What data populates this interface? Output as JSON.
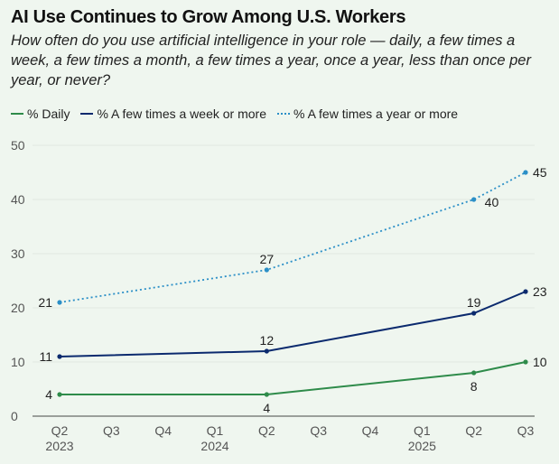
{
  "title": "AI Use Continues to Grow Among U.S. Workers",
  "subtitle": "How often do you use artificial intelligence in your role — daily, a few times a week, a few times a month, a few times a year, once a year, less than once per year, or never?",
  "chart_data": {
    "type": "line",
    "title": "AI Use Continues to Grow Among U.S. Workers",
    "xlabel": "",
    "ylabel": "",
    "ylim": [
      0,
      50
    ],
    "yticks": [
      "0",
      "10",
      "20",
      "30",
      "40",
      "50"
    ],
    "grid": true,
    "legend": "top-left",
    "categories": [
      "Q2",
      "Q3",
      "Q4",
      "Q1",
      "Q2",
      "Q3",
      "Q4",
      "Q1",
      "Q2",
      "Q3"
    ],
    "year_labels": [
      {
        "index": 0,
        "label": "2023"
      },
      {
        "index": 3,
        "label": "2024"
      },
      {
        "index": 7,
        "label": "2025"
      }
    ],
    "series": [
      {
        "name": "% Daily",
        "color": "#2e8b4a",
        "style": "solid",
        "points": [
          {
            "i": 0,
            "v": 4,
            "label": "4",
            "pos": "left"
          },
          {
            "i": 4,
            "v": 4,
            "label": "4",
            "pos": "below"
          },
          {
            "i": 8,
            "v": 8,
            "label": "8",
            "pos": "below"
          },
          {
            "i": 9,
            "v": 10,
            "label": "10",
            "pos": "right"
          }
        ]
      },
      {
        "name": "% A few times a week or more",
        "color": "#0b2a6e",
        "style": "solid",
        "points": [
          {
            "i": 0,
            "v": 11,
            "label": "11",
            "pos": "left"
          },
          {
            "i": 4,
            "v": 12,
            "label": "12",
            "pos": "above"
          },
          {
            "i": 8,
            "v": 19,
            "label": "19",
            "pos": "above"
          },
          {
            "i": 9,
            "v": 23,
            "label": "23",
            "pos": "right"
          }
        ]
      },
      {
        "name": "% A few times a year or more",
        "color": "#2b8fc7",
        "style": "dotted",
        "points": [
          {
            "i": 0,
            "v": 21,
            "label": "21",
            "pos": "left"
          },
          {
            "i": 4,
            "v": 27,
            "label": "27",
            "pos": "above"
          },
          {
            "i": 8,
            "v": 40,
            "label": "40",
            "pos": "belowright"
          },
          {
            "i": 9,
            "v": 45,
            "label": "45",
            "pos": "right"
          }
        ]
      }
    ]
  }
}
